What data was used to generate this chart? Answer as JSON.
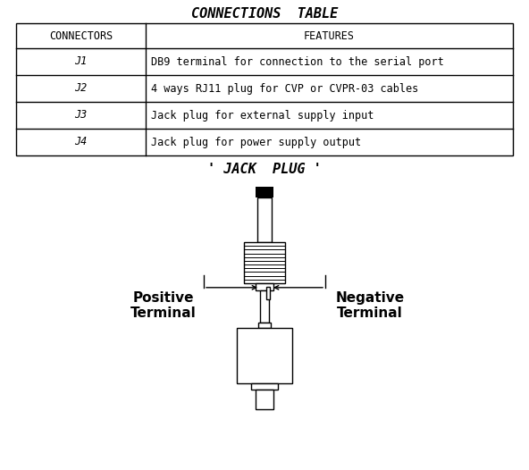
{
  "title": "CONNECTIONS  TABLE",
  "jack_plug_title": "' JACK  PLUG '",
  "table_headers": [
    "CONNECTORS",
    "FEATURES"
  ],
  "table_rows": [
    [
      "J1",
      "DB9 terminal for connection to the serial port"
    ],
    [
      "J2",
      "4 ways RJ11 plug for CVP or CVPR-03 cables"
    ],
    [
      "J3",
      "Jack plug for external supply input"
    ],
    [
      "J4",
      "Jack plug for power supply output"
    ]
  ],
  "positive_label": "Positive\nTerminal",
  "negative_label": "Negative\nTerminal",
  "bg_color": "#ffffff",
  "line_color": "#000000",
  "table_font_size": 8.5,
  "title_font_size": 11,
  "jack_title_font_size": 11
}
